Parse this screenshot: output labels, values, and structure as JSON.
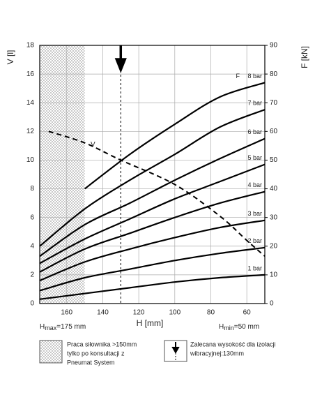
{
  "chart_data": {
    "type": "line",
    "ylabel": "V [l]",
    "y2label": "F [kN]",
    "xlabel": "H [mm]",
    "xlim": [
      175,
      50
    ],
    "xticks": [
      160,
      140,
      120,
      100,
      80,
      60
    ],
    "ylim": [
      0,
      18
    ],
    "yticks": [
      0,
      2,
      4,
      6,
      8,
      10,
      12,
      14,
      16,
      18
    ],
    "y2lim": [
      0,
      90
    ],
    "y2ticks": [
      0,
      10,
      20,
      30,
      40,
      50,
      60,
      70,
      80,
      90
    ],
    "grid": true,
    "hatch_region": [
      175,
      150
    ],
    "recommended_height": 130,
    "series": [
      {
        "name": "V",
        "color": "#000000",
        "dashed": true,
        "axis": "y",
        "x": [
          170,
          150,
          130,
          100,
          75,
          60,
          50
        ],
        "values": [
          12,
          11.2,
          10,
          8.3,
          6.1,
          4.4,
          3.3
        ]
      },
      {
        "name": "1 bar",
        "color": "#000000",
        "axis": "y2",
        "x": [
          175,
          150,
          125,
          100,
          75,
          50
        ],
        "values": [
          1.5,
          3.5,
          5.5,
          7.5,
          9,
          10
        ]
      },
      {
        "name": "2 bar",
        "color": "#000000",
        "axis": "y2",
        "x": [
          175,
          150,
          125,
          100,
          75,
          50
        ],
        "values": [
          4.5,
          9,
          12,
          15,
          17.5,
          19.5
        ]
      },
      {
        "name": "3 bar",
        "color": "#000000",
        "axis": "y2",
        "x": [
          175,
          150,
          125,
          100,
          75,
          50
        ],
        "values": [
          8,
          14.5,
          19,
          23,
          26.5,
          29
        ]
      },
      {
        "name": "4 bar",
        "color": "#000000",
        "axis": "y2",
        "x": [
          175,
          150,
          125,
          100,
          75,
          50
        ],
        "values": [
          11,
          19,
          24.5,
          30,
          35,
          39
        ]
      },
      {
        "name": "5 bar",
        "color": "#000000",
        "axis": "y2",
        "x": [
          175,
          150,
          125,
          100,
          75,
          50
        ],
        "values": [
          14,
          22.5,
          29.5,
          36.5,
          42.5,
          48.5
        ]
      },
      {
        "name": "6 bar",
        "color": "#000000",
        "axis": "y2",
        "x": [
          175,
          150,
          125,
          100,
          75,
          50
        ],
        "values": [
          16.5,
          27.5,
          35,
          43,
          50.5,
          57.5
        ]
      },
      {
        "name": "7 bar",
        "color": "#000000",
        "axis": "y2",
        "x": [
          175,
          150,
          125,
          100,
          75,
          50
        ],
        "values": [
          20,
          33,
          43,
          52,
          61.5,
          67.6
        ]
      },
      {
        "name": "8 bar",
        "color": "#000000",
        "axis": "y2",
        "x": [
          175,
          150,
          125,
          100,
          75,
          50
        ],
        "values": [
          null,
          40,
          52,
          62.5,
          72,
          77
        ]
      }
    ],
    "annotations": {
      "force": "F",
      "hmax": {
        "symbol": "H",
        "sub": "max",
        "rest": "=175 mm"
      },
      "hmin": {
        "symbol": "H",
        "sub": "min",
        "rest": "=50 mm"
      }
    },
    "legend": {
      "hatch": [
        "Praca siłownika >150mm",
        "tylko po konsultacji z",
        "Pneumat System"
      ],
      "arrow": [
        "Zalecana wysokość dla izolacji",
        "wibracyjnej:130mm"
      ]
    }
  }
}
